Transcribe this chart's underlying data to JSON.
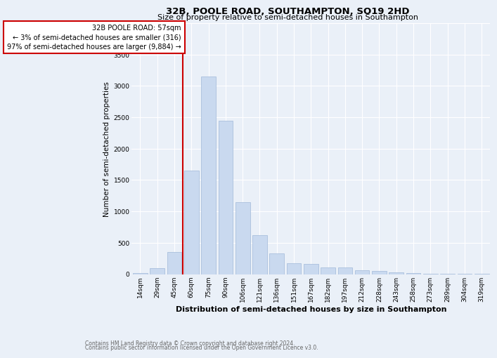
{
  "title": "32B, POOLE ROAD, SOUTHAMPTON, SO19 2HD",
  "subtitle": "Size of property relative to semi-detached houses in Southampton",
  "xlabel": "Distribution of semi-detached houses by size in Southampton",
  "ylabel": "Number of semi-detached properties",
  "footnote1": "Contains HM Land Registry data © Crown copyright and database right 2024.",
  "footnote2": "Contains public sector information licensed under the Open Government Licence v3.0.",
  "property_label": "32B POOLE ROAD: 57sqm",
  "smaller_pct": "← 3% of semi-detached houses are smaller (316)",
  "larger_pct": "97% of semi-detached houses are larger (9,884) →",
  "categories": [
    "14sqm",
    "29sqm",
    "45sqm",
    "60sqm",
    "75sqm",
    "90sqm",
    "106sqm",
    "121sqm",
    "136sqm",
    "151sqm",
    "167sqm",
    "182sqm",
    "197sqm",
    "212sqm",
    "228sqm",
    "243sqm",
    "258sqm",
    "273sqm",
    "289sqm",
    "304sqm",
    "319sqm"
  ],
  "values": [
    20,
    100,
    350,
    1650,
    3150,
    2450,
    1150,
    620,
    330,
    175,
    165,
    110,
    105,
    65,
    45,
    30,
    15,
    8,
    4,
    2,
    1
  ],
  "bar_color": "#c9d9ef",
  "bar_edge_color": "#a0b8d8",
  "vline_color": "#cc0000",
  "vline_x_index": 3,
  "annotation_box_color": "#cc0000",
  "ylim": [
    0,
    4000
  ],
  "yticks": [
    0,
    500,
    1000,
    1500,
    2000,
    2500,
    3000,
    3500,
    4000
  ],
  "bg_color": "#eaf0f8",
  "plot_bg_color": "#eaf0f8",
  "grid_color": "#ffffff",
  "title_fontsize": 9.5,
  "subtitle_fontsize": 8,
  "ylabel_fontsize": 7.5,
  "xlabel_fontsize": 8,
  "tick_fontsize": 6.5,
  "annotation_fontsize": 7,
  "footnote_fontsize": 5.5
}
